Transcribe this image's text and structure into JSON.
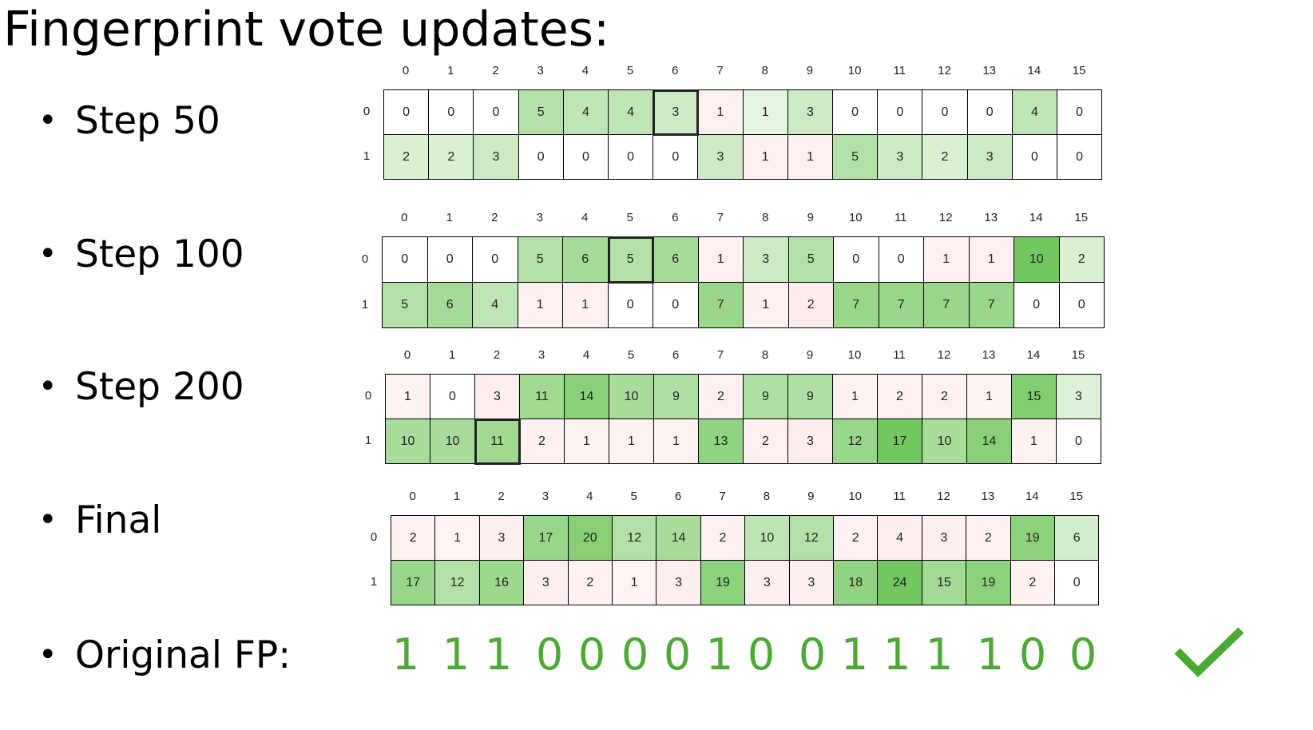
{
  "title": "Fingerprint vote updates:",
  "bullets": [
    {
      "label": "Step 50"
    },
    {
      "label": "Step 100"
    },
    {
      "label": "Step 200"
    },
    {
      "label": "Final"
    },
    {
      "label": "Original FP:"
    }
  ],
  "column_labels": [
    "0",
    "1",
    "2",
    "3",
    "4",
    "5",
    "6",
    "7",
    "8",
    "9",
    "10",
    "11",
    "12",
    "13",
    "14",
    "15"
  ],
  "row_labels": [
    "0",
    "1"
  ],
  "grids": [
    {
      "name": "Step 50",
      "rows": [
        [
          0,
          0,
          0,
          5,
          4,
          4,
          3,
          1,
          1,
          3,
          0,
          0,
          0,
          0,
          4,
          0
        ],
        [
          2,
          2,
          3,
          0,
          0,
          0,
          0,
          3,
          1,
          1,
          5,
          3,
          2,
          3,
          0,
          0
        ]
      ],
      "highlight": [
        0,
        6
      ]
    },
    {
      "name": "Step 100",
      "rows": [
        [
          0,
          0,
          0,
          5,
          6,
          5,
          6,
          1,
          3,
          5,
          0,
          0,
          1,
          1,
          10,
          2
        ],
        [
          5,
          6,
          4,
          1,
          1,
          0,
          0,
          7,
          1,
          2,
          7,
          7,
          7,
          7,
          0,
          0
        ]
      ],
      "highlight": [
        0,
        5
      ]
    },
    {
      "name": "Step 200",
      "rows": [
        [
          1,
          0,
          3,
          11,
          14,
          10,
          9,
          2,
          9,
          9,
          1,
          2,
          2,
          1,
          15,
          3
        ],
        [
          10,
          10,
          11,
          2,
          1,
          1,
          1,
          13,
          2,
          3,
          12,
          17,
          10,
          14,
          1,
          0
        ]
      ],
      "highlight": [
        1,
        2
      ]
    },
    {
      "name": "Final",
      "rows": [
        [
          2,
          1,
          3,
          17,
          20,
          12,
          14,
          2,
          10,
          12,
          2,
          4,
          3,
          2,
          19,
          6
        ],
        [
          17,
          12,
          16,
          3,
          2,
          1,
          3,
          19,
          3,
          3,
          18,
          24,
          15,
          19,
          2,
          0
        ]
      ],
      "highlight": null
    }
  ],
  "original_fp": [
    "1",
    "1",
    "1",
    "0",
    "0",
    "0",
    "0",
    "1",
    "0",
    "0",
    "1",
    "1",
    "1",
    "1",
    "0",
    "0"
  ],
  "colors": {
    "green_text": "#4ca934",
    "check": "#4ca934",
    "positive_cell": "#5fbf48",
    "negative_cell": "#f08080"
  },
  "icons": {
    "check": "checkmark-icon"
  }
}
